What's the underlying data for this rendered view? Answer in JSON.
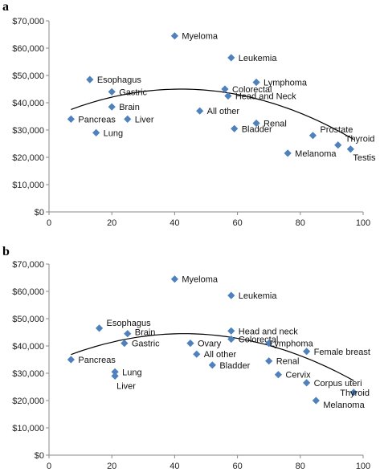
{
  "colors": {
    "marker": "#4F81BD",
    "trend": "#000000",
    "axis": "#888888"
  },
  "chart_data": [
    {
      "type": "scatter",
      "panel_label": "a",
      "xlim": [
        0,
        100
      ],
      "ylim": [
        0,
        70000
      ],
      "x_ticks": [
        0,
        20,
        40,
        60,
        80,
        100
      ],
      "x_tick_labels": [
        "0",
        "20",
        "40",
        "60",
        "80",
        "100"
      ],
      "y_ticks": [
        0,
        10000,
        20000,
        30000,
        40000,
        50000,
        60000,
        70000
      ],
      "y_tick_labels": [
        "$0",
        "$10,000",
        "$20,000",
        "$30,000",
        "$40,000",
        "$50,000",
        "$60,000",
        "$70,000"
      ],
      "grid": false,
      "points": [
        {
          "label": "Myeloma",
          "x": 40,
          "y": 64500
        },
        {
          "label": "Leukemia",
          "x": 58,
          "y": 56500
        },
        {
          "label": "Esophagus",
          "x": 13,
          "y": 48500
        },
        {
          "label": "Lymphoma",
          "x": 66,
          "y": 47500
        },
        {
          "label": "Gastric",
          "x": 20,
          "y": 44000
        },
        {
          "label": "Colorectal",
          "x": 56,
          "y": 45000
        },
        {
          "label": "Head and Neck",
          "x": 57,
          "y": 42500
        },
        {
          "label": "Brain",
          "x": 20,
          "y": 38500
        },
        {
          "label": "All other",
          "x": 48,
          "y": 37000
        },
        {
          "label": "Pancreas",
          "x": 7,
          "y": 34000
        },
        {
          "label": "Liver",
          "x": 25,
          "y": 34000
        },
        {
          "label": "Renal",
          "x": 66,
          "y": 32500
        },
        {
          "label": "Bladder",
          "x": 59,
          "y": 30500
        },
        {
          "label": "Lung",
          "x": 15,
          "y": 29000
        },
        {
          "label": "Prostate",
          "x": 84,
          "y": 28000
        },
        {
          "label": "Thyroid",
          "x": 92,
          "y": 24500
        },
        {
          "label": "Testis",
          "x": 96,
          "y": 23000
        },
        {
          "label": "Melanoma",
          "x": 76,
          "y": 21500
        }
      ],
      "trend": {
        "type": "polynomial-2",
        "x_range": [
          7,
          97
        ],
        "vertex_x": 42,
        "vertex_y": 45000,
        "curvature": 6.1
      }
    },
    {
      "type": "scatter",
      "panel_label": "b",
      "xlim": [
        0,
        100
      ],
      "ylim": [
        0,
        70000
      ],
      "x_ticks": [
        0,
        20,
        40,
        60,
        80,
        100
      ],
      "x_tick_labels": [
        "0",
        "20",
        "40",
        "60",
        "80",
        "100"
      ],
      "y_ticks": [
        0,
        10000,
        20000,
        30000,
        40000,
        50000,
        60000,
        70000
      ],
      "y_tick_labels": [
        "$0",
        "$10,000",
        "$20,000",
        "$30,000",
        "$40,000",
        "$50,000",
        "$60,000",
        "$70,000"
      ],
      "grid": false,
      "points": [
        {
          "label": "Myeloma",
          "x": 40,
          "y": 64500
        },
        {
          "label": "Leukemia",
          "x": 58,
          "y": 58500
        },
        {
          "label": "Esophagus",
          "x": 16,
          "y": 46500
        },
        {
          "label": "Head and neck",
          "x": 58,
          "y": 45500
        },
        {
          "label": "Brain",
          "x": 25,
          "y": 44500
        },
        {
          "label": "Colorectal",
          "x": 58,
          "y": 42500
        },
        {
          "label": "Lymphoma",
          "x": 70,
          "y": 41000
        },
        {
          "label": "Gastric",
          "x": 24,
          "y": 41000
        },
        {
          "label": "Ovary",
          "x": 45,
          "y": 41000
        },
        {
          "label": "Female breast",
          "x": 82,
          "y": 38000
        },
        {
          "label": "All other",
          "x": 47,
          "y": 37000
        },
        {
          "label": "Pancreas",
          "x": 7,
          "y": 35000
        },
        {
          "label": "Renal",
          "x": 70,
          "y": 34500
        },
        {
          "label": "Bladder",
          "x": 52,
          "y": 33000
        },
        {
          "label": "Lung",
          "x": 21,
          "y": 30500
        },
        {
          "label": "Cervix",
          "x": 73,
          "y": 29500
        },
        {
          "label": "Liver",
          "x": 21,
          "y": 29000
        },
        {
          "label": "Corpus uteri",
          "x": 82,
          "y": 26500
        },
        {
          "label": "Thyroid",
          "x": 97,
          "y": 23000
        },
        {
          "label": "Melanoma",
          "x": 85,
          "y": 20000
        }
      ],
      "trend": {
        "type": "polynomial-2",
        "x_range": [
          7,
          97
        ],
        "vertex_x": 43,
        "vertex_y": 44500,
        "curvature": 5.9
      }
    }
  ]
}
